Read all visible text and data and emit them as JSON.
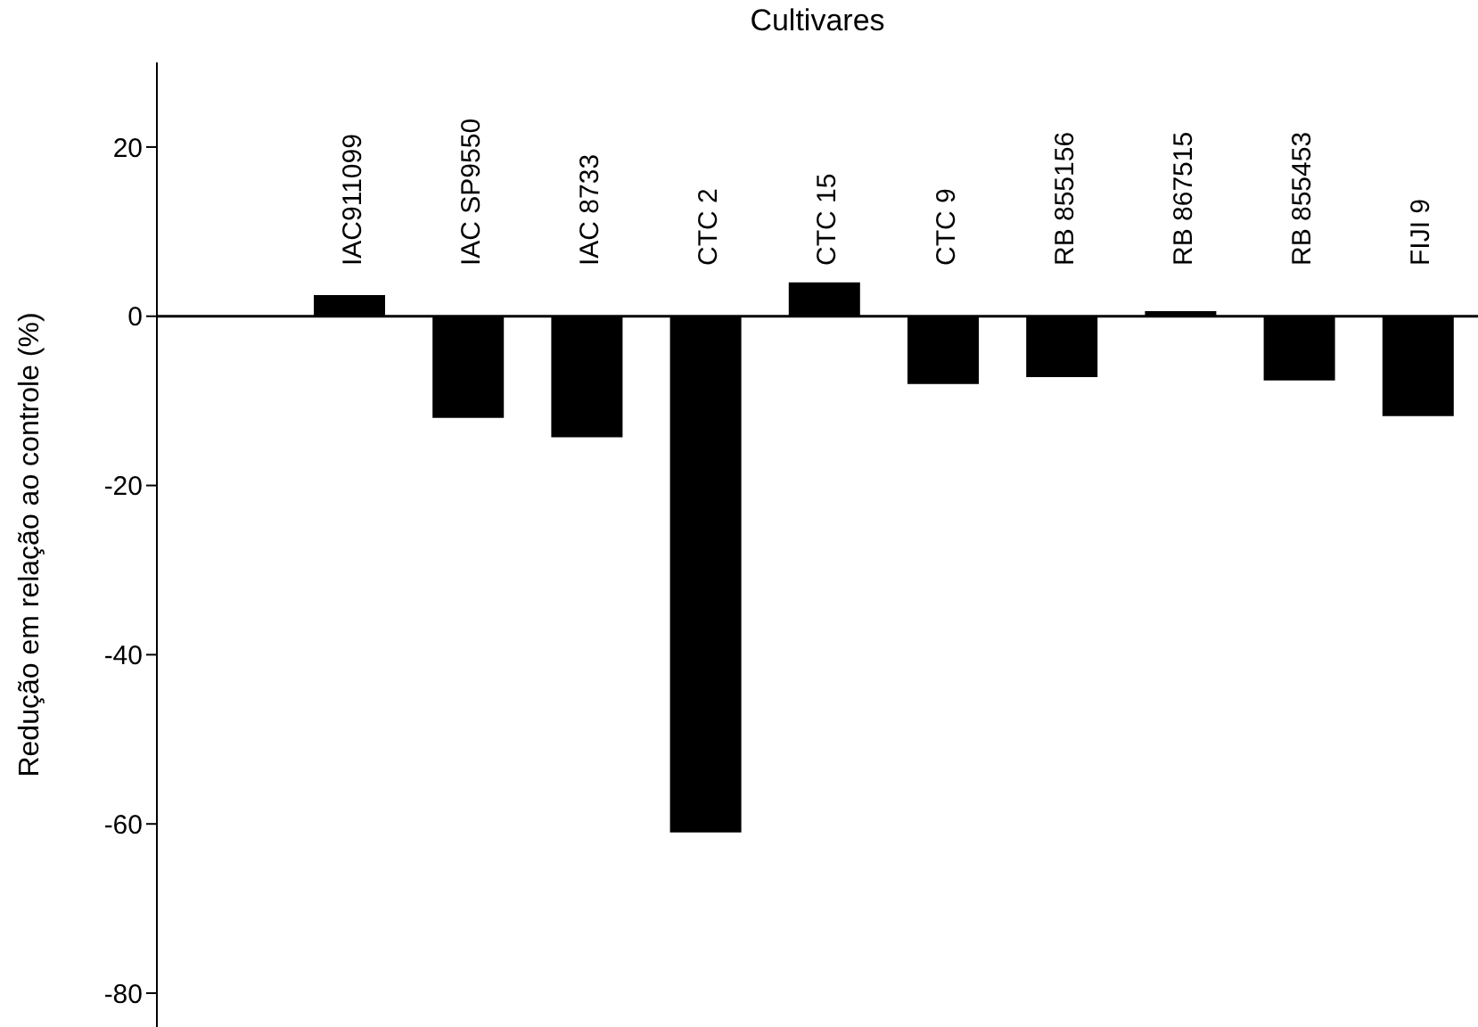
{
  "chart_data": {
    "type": "bar",
    "xlabel": "Cultivares",
    "ylabel": "Redução em relação ao controle (%)",
    "categories": [
      "IAC911099",
      "IAC SP9550",
      "IAC 8733",
      "CTC 2",
      "CTC 15",
      "CTC 9",
      "RB 855156",
      "RB 867515",
      "RB 855453",
      "FIJI 9"
    ],
    "values": [
      2.5,
      -12,
      -14.3,
      -61,
      4,
      -8,
      -7.2,
      0.6,
      -7.6,
      -11.8
    ],
    "color": "#000000",
    "ylim": [
      -84,
      30
    ],
    "yticks": [
      -80,
      -60,
      -40,
      -20,
      0,
      20
    ]
  }
}
